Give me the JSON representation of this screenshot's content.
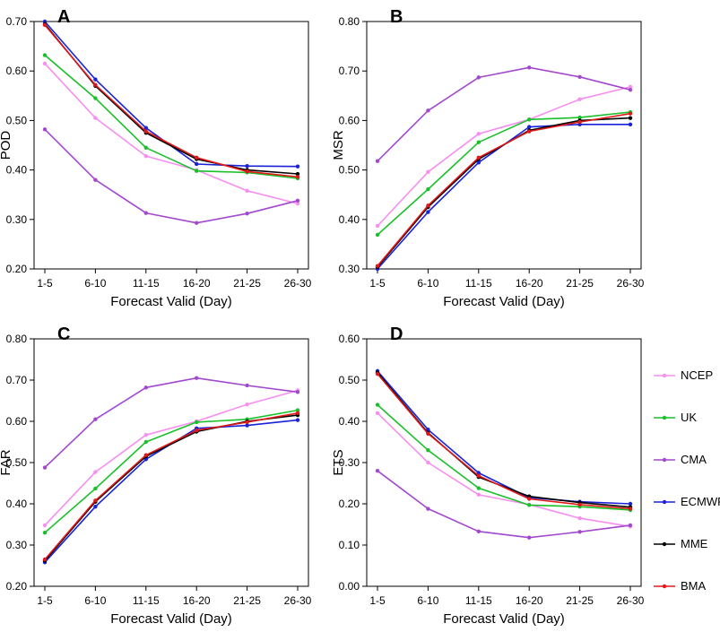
{
  "figure": {
    "legend": [
      {
        "name": "NCEP",
        "color": "#f78ef0"
      },
      {
        "name": "UK",
        "color": "#19c02a"
      },
      {
        "name": "CMA",
        "color": "#a248cf"
      },
      {
        "name": "ECMWF",
        "color": "#1a22d8"
      },
      {
        "name": "MME",
        "color": "#000000"
      },
      {
        "name": "BMA",
        "color": "#e01818"
      }
    ]
  },
  "chart_data": [
    {
      "type": "line",
      "panel_label": "A",
      "title": "",
      "xlabel": "Forecast Valid (Day)",
      "ylabel": "POD",
      "categories": [
        "1-5",
        "6-10",
        "11-15",
        "16-20",
        "21-25",
        "26-30"
      ],
      "ylim": [
        0.2,
        0.7
      ],
      "yticks": [
        "0.20",
        "0.30",
        "0.40",
        "0.50",
        "0.60",
        "0.70"
      ],
      "series": [
        {
          "name": "NCEP",
          "values": [
            0.615,
            0.505,
            0.428,
            0.4,
            0.358,
            0.332
          ]
        },
        {
          "name": "UK",
          "values": [
            0.632,
            0.545,
            0.445,
            0.398,
            0.395,
            0.383
          ]
        },
        {
          "name": "CMA",
          "values": [
            0.482,
            0.38,
            0.313,
            0.293,
            0.312,
            0.338
          ]
        },
        {
          "name": "ECMWF",
          "values": [
            0.7,
            0.583,
            0.485,
            0.412,
            0.408,
            0.407
          ]
        },
        {
          "name": "MME",
          "values": [
            0.695,
            0.57,
            0.475,
            0.422,
            0.4,
            0.392
          ]
        },
        {
          "name": "BMA",
          "values": [
            0.693,
            0.572,
            0.478,
            0.425,
            0.397,
            0.386
          ]
        }
      ]
    },
    {
      "type": "line",
      "panel_label": "B",
      "title": "",
      "xlabel": "Forecast Valid (Day)",
      "ylabel": "MSR",
      "categories": [
        "1-5",
        "6-10",
        "11-15",
        "16-20",
        "21-25",
        "26-30"
      ],
      "ylim": [
        0.3,
        0.8
      ],
      "yticks": [
        "0.30",
        "0.40",
        "0.50",
        "0.60",
        "0.70",
        "0.80"
      ],
      "series": [
        {
          "name": "NCEP",
          "values": [
            0.387,
            0.496,
            0.573,
            0.602,
            0.643,
            0.668
          ]
        },
        {
          "name": "UK",
          "values": [
            0.369,
            0.461,
            0.556,
            0.602,
            0.606,
            0.617
          ]
        },
        {
          "name": "CMA",
          "values": [
            0.518,
            0.62,
            0.687,
            0.707,
            0.688,
            0.662
          ]
        },
        {
          "name": "ECMWF",
          "values": [
            0.3,
            0.415,
            0.515,
            0.587,
            0.592,
            0.592
          ]
        },
        {
          "name": "MME",
          "values": [
            0.304,
            0.425,
            0.522,
            0.58,
            0.6,
            0.605
          ]
        },
        {
          "name": "BMA",
          "values": [
            0.306,
            0.428,
            0.525,
            0.578,
            0.597,
            0.614
          ]
        }
      ]
    },
    {
      "type": "line",
      "panel_label": "C",
      "title": "",
      "xlabel": "Forecast Valid (Day)",
      "ylabel": "FAR",
      "categories": [
        "1-5",
        "6-10",
        "11-15",
        "16-20",
        "21-25",
        "26-30"
      ],
      "ylim": [
        0.2,
        0.8
      ],
      "yticks": [
        "0.20",
        "0.30",
        "0.40",
        "0.50",
        "0.60",
        "0.70",
        "0.80"
      ],
      "series": [
        {
          "name": "NCEP",
          "values": [
            0.348,
            0.477,
            0.567,
            0.6,
            0.641,
            0.675
          ]
        },
        {
          "name": "UK",
          "values": [
            0.33,
            0.437,
            0.55,
            0.598,
            0.605,
            0.627
          ]
        },
        {
          "name": "CMA",
          "values": [
            0.488,
            0.605,
            0.682,
            0.705,
            0.687,
            0.671
          ]
        },
        {
          "name": "ECMWF",
          "values": [
            0.258,
            0.393,
            0.508,
            0.583,
            0.59,
            0.603
          ]
        },
        {
          "name": "MME",
          "values": [
            0.262,
            0.405,
            0.515,
            0.575,
            0.6,
            0.615
          ]
        },
        {
          "name": "BMA",
          "values": [
            0.265,
            0.408,
            0.518,
            0.578,
            0.598,
            0.62
          ]
        }
      ]
    },
    {
      "type": "line",
      "panel_label": "D",
      "title": "",
      "xlabel": "Forecast Valid (Day)",
      "ylabel": "ETS",
      "categories": [
        "1-5",
        "6-10",
        "11-15",
        "16-20",
        "21-25",
        "26-30"
      ],
      "ylim": [
        0.0,
        0.6
      ],
      "yticks": [
        "0.00",
        "0.10",
        "0.20",
        "0.30",
        "0.40",
        "0.50",
        "0.60"
      ],
      "series": [
        {
          "name": "NCEP",
          "values": [
            0.42,
            0.3,
            0.222,
            0.198,
            0.165,
            0.145
          ]
        },
        {
          "name": "UK",
          "values": [
            0.44,
            0.33,
            0.238,
            0.197,
            0.193,
            0.185
          ]
        },
        {
          "name": "CMA",
          "values": [
            0.28,
            0.188,
            0.133,
            0.118,
            0.132,
            0.148
          ]
        },
        {
          "name": "ECMWF",
          "values": [
            0.522,
            0.38,
            0.275,
            0.215,
            0.205,
            0.2
          ]
        },
        {
          "name": "MME",
          "values": [
            0.518,
            0.372,
            0.265,
            0.218,
            0.203,
            0.192
          ]
        },
        {
          "name": "BMA",
          "values": [
            0.515,
            0.37,
            0.268,
            0.212,
            0.198,
            0.188
          ]
        }
      ]
    }
  ]
}
